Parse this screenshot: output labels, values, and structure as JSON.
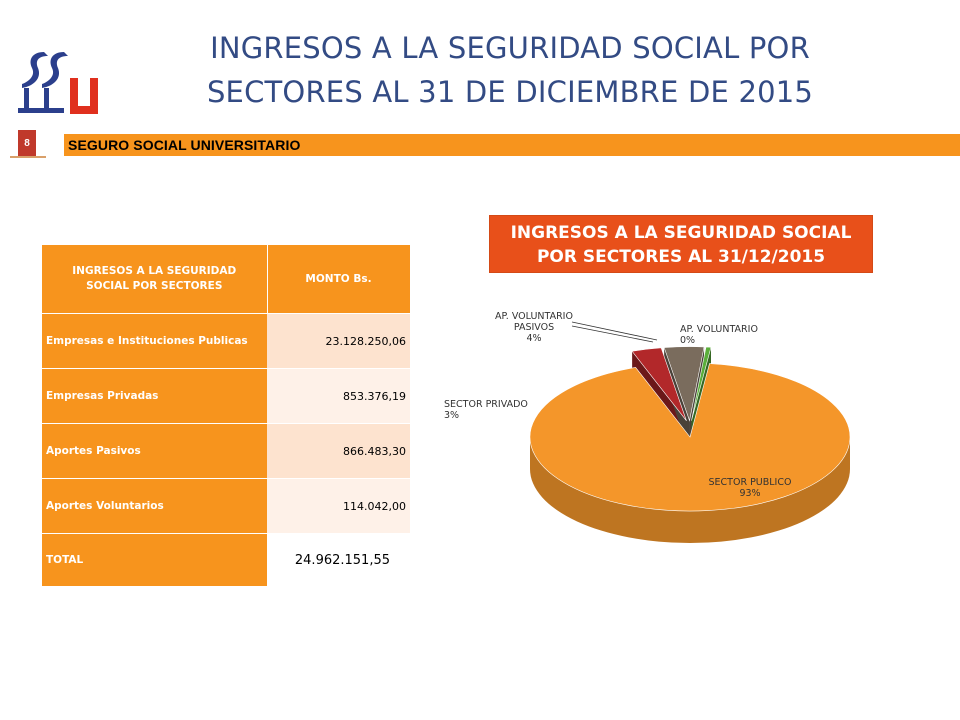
{
  "title": {
    "line1": "INGRESOS A LA SEGURIDAD SOCIAL POR",
    "line2": "SECTORES AL 31 DE DICIEMBRE DE 2015"
  },
  "banner": {
    "text": "SEGURO SOCIAL UNIVERSITARIO",
    "slide_number": "8"
  },
  "colors": {
    "accent": "#f7941d",
    "title_blue": "#334b84",
    "chart_title_bg": "#e8501a",
    "logo_blue": "#2b3f8c",
    "logo_red": "#e0301e"
  },
  "table": {
    "header": {
      "col1": "INGRESOS A LA SEGURIDAD SOCIAL POR SECTORES",
      "col2": "MONTO Bs."
    },
    "rows": [
      {
        "label": "Empresas e Instituciones Publicas",
        "value": "23.128.250,06"
      },
      {
        "label": "Empresas Privadas",
        "value": "853.376,19"
      },
      {
        "label": "Aportes Pasivos",
        "value": "866.483,30"
      },
      {
        "label": "Aportes Voluntarios",
        "value": "114.042,00"
      }
    ],
    "total": {
      "label": "TOTAL",
      "value": "24.962.151,55"
    }
  },
  "chart_data": {
    "type": "pie",
    "title": "INGRESOS A LA SEGURIDAD SOCIAL POR SECTORES AL 31/12/2015",
    "title_line1": "INGRESOS A LA SEGURIDAD SOCIAL",
    "title_line2": "POR SECTORES AL 31/12/2015",
    "three_d": true,
    "slices": [
      {
        "label_line1": "SECTOR PUBLICO",
        "label_line2": "",
        "percent_label": "93%",
        "value": 93,
        "color": "#f4962a"
      },
      {
        "label_line1": "SECTOR PRIVADO",
        "label_line2": "",
        "percent_label": "3%",
        "value": 3,
        "color": "#b2282a"
      },
      {
        "label_line1": "AP. VOLUNTARIO",
        "label_line2": "PASIVOS",
        "percent_label": "4%",
        "value": 4,
        "color": "#7a6c5d"
      },
      {
        "label_line1": "AP. VOLUNTARIO",
        "label_line2": "",
        "percent_label": "0%",
        "value": 0.5,
        "color": "#5aae3a"
      }
    ]
  }
}
